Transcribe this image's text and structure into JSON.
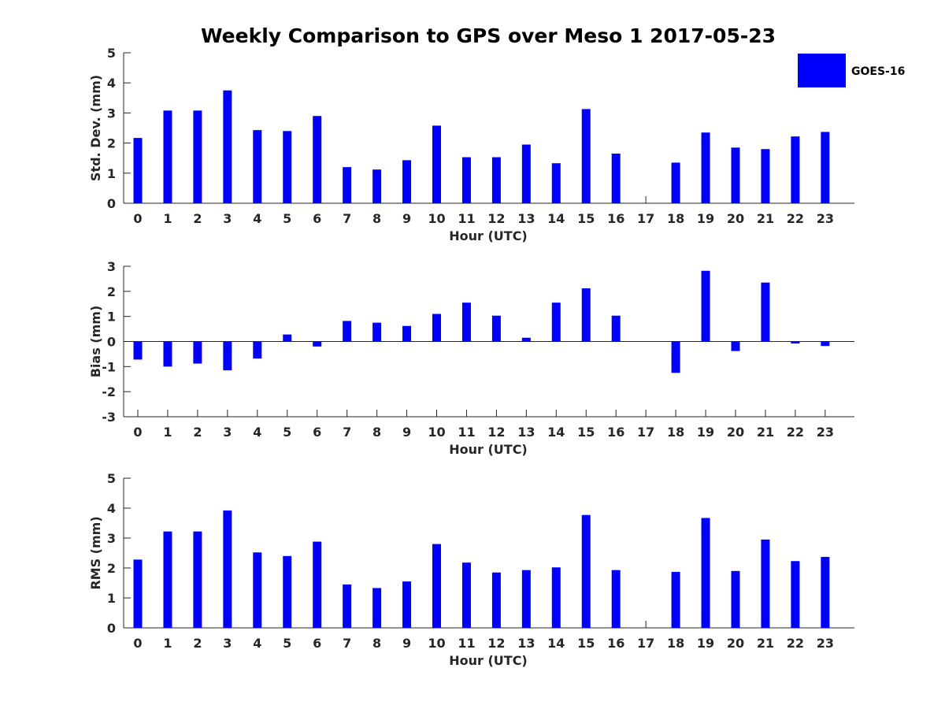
{
  "chart_data": {
    "title": "Weekly Comparison to GPS over Meso 1 2017-05-23",
    "legend": {
      "label": "GOES-16",
      "color": "#0000ff",
      "position": "top-right"
    },
    "panels": [
      {
        "type": "bar",
        "name": "std-dev",
        "ylabel": "Std. Dev. (mm)",
        "xlabel": "Hour (UTC)",
        "ylim": [
          0,
          5
        ],
        "yticks": [
          0,
          1,
          2,
          3,
          4,
          5
        ],
        "categories": [
          "0",
          "1",
          "2",
          "3",
          "4",
          "5",
          "6",
          "7",
          "8",
          "9",
          "10",
          "11",
          "12",
          "13",
          "14",
          "15",
          "16",
          "17",
          "18",
          "19",
          "20",
          "21",
          "22",
          "23"
        ],
        "values": [
          2.17,
          3.08,
          3.08,
          3.75,
          2.43,
          2.4,
          2.9,
          1.2,
          1.12,
          1.43,
          2.58,
          1.53,
          1.53,
          1.95,
          1.33,
          3.13,
          1.65,
          0,
          1.35,
          2.35,
          1.85,
          1.8,
          2.22,
          2.37
        ],
        "zero_line": false
      },
      {
        "type": "bar",
        "name": "bias",
        "ylabel": "Bias (mm)",
        "xlabel": "Hour (UTC)",
        "ylim": [
          -3,
          3
        ],
        "yticks": [
          -3,
          -2,
          -1,
          0,
          1,
          2,
          3
        ],
        "categories": [
          "0",
          "1",
          "2",
          "3",
          "4",
          "5",
          "6",
          "7",
          "8",
          "9",
          "10",
          "11",
          "12",
          "13",
          "14",
          "15",
          "16",
          "17",
          "18",
          "19",
          "20",
          "21",
          "22",
          "23"
        ],
        "values": [
          -0.72,
          -1.0,
          -0.88,
          -1.15,
          -0.68,
          0.28,
          -0.2,
          0.82,
          0.75,
          0.62,
          1.1,
          1.55,
          1.03,
          0.15,
          1.55,
          2.12,
          1.03,
          0,
          -1.25,
          2.82,
          -0.38,
          2.35,
          -0.08,
          -0.18
        ],
        "zero_line": true
      },
      {
        "type": "bar",
        "name": "rms",
        "ylabel": "RMS (mm)",
        "xlabel": "Hour (UTC)",
        "ylim": [
          0,
          5
        ],
        "yticks": [
          0,
          1,
          2,
          3,
          4,
          5
        ],
        "categories": [
          "0",
          "1",
          "2",
          "3",
          "4",
          "5",
          "6",
          "7",
          "8",
          "9",
          "10",
          "11",
          "12",
          "13",
          "14",
          "15",
          "16",
          "17",
          "18",
          "19",
          "20",
          "21",
          "22",
          "23"
        ],
        "values": [
          2.28,
          3.22,
          3.22,
          3.92,
          2.52,
          2.4,
          2.88,
          1.45,
          1.33,
          1.55,
          2.8,
          2.18,
          1.85,
          1.93,
          2.02,
          3.77,
          1.93,
          0,
          1.87,
          3.67,
          1.9,
          2.95,
          2.23,
          2.37
        ],
        "zero_line": false
      }
    ]
  }
}
